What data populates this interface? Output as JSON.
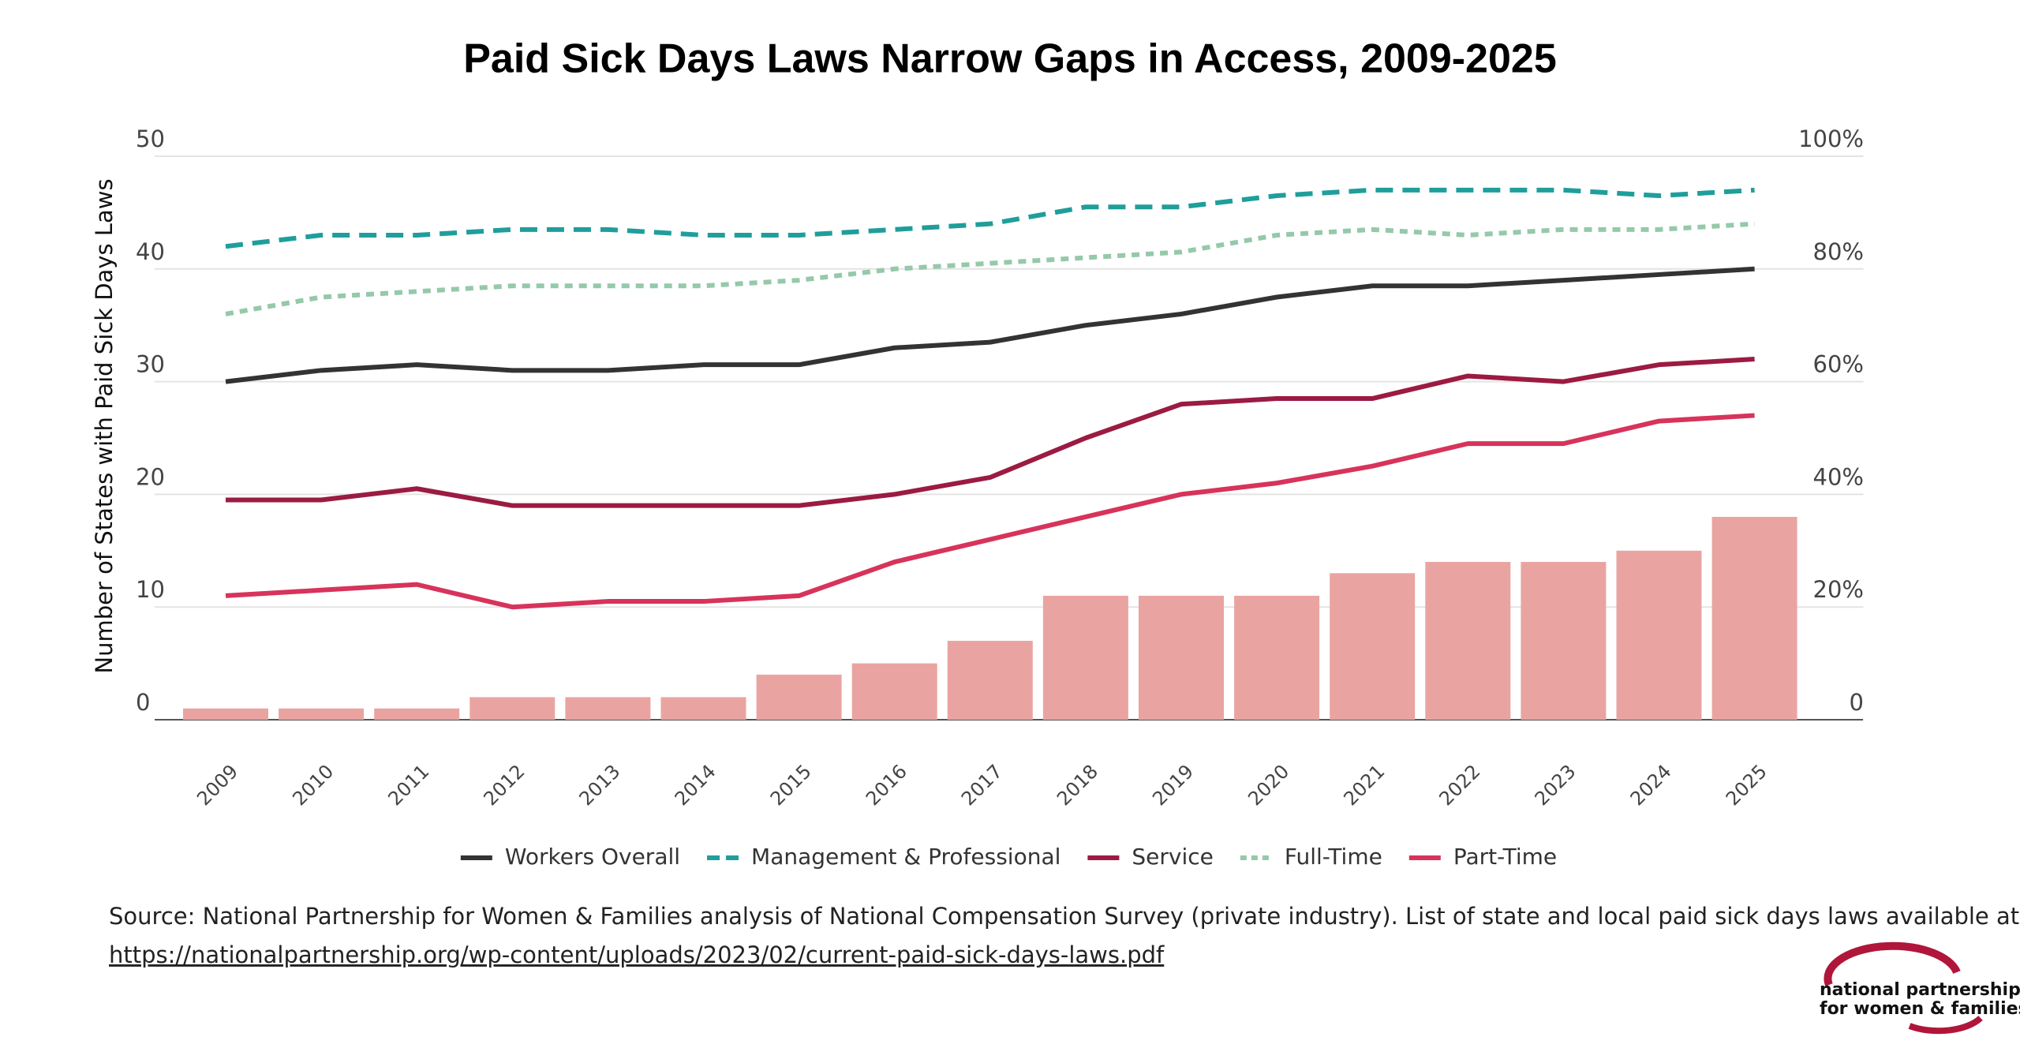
{
  "chart_data": {
    "type": "combo",
    "title": "Paid Sick Days Laws Narrow Gaps in Access, 2009-2025",
    "y_label": "Number of States with Paid Sick Days Laws",
    "categories": [
      "2009",
      "2010",
      "2011",
      "2012",
      "2013",
      "2014",
      "2015",
      "2016",
      "2017",
      "2018",
      "2019",
      "2020",
      "2021",
      "2022",
      "2023",
      "2024",
      "2025"
    ],
    "ylim": [
      0,
      50
    ],
    "yticks": [
      0,
      10,
      20,
      30,
      40,
      50
    ],
    "y2lim": [
      0,
      100
    ],
    "y2ticks": [
      {
        "value": 0,
        "label": "0"
      },
      {
        "value": 20,
        "label": "20%"
      },
      {
        "value": 40,
        "label": "40%"
      },
      {
        "value": 60,
        "label": "60%"
      },
      {
        "value": 80,
        "label": "80%"
      },
      {
        "value": 100,
        "label": "100%"
      }
    ],
    "grid": true,
    "series": [
      {
        "type": "bar",
        "color": "#e9a4a1",
        "values": [
          1,
          1,
          1,
          2,
          2,
          2,
          4,
          5,
          7,
          11,
          11,
          11,
          13,
          14,
          14,
          15,
          18
        ]
      },
      {
        "type": "line",
        "name": "Workers Overall",
        "color": "#333333",
        "dash": "solid",
        "axis": "y2",
        "values": [
          60,
          62,
          63,
          62,
          62,
          63,
          63,
          66,
          67,
          70,
          72,
          75,
          77,
          77,
          78,
          79,
          80
        ]
      },
      {
        "type": "line",
        "name": "Management & Professional",
        "color": "#1f9e9b",
        "dash": "dashed",
        "axis": "y2",
        "values": [
          84,
          86,
          86,
          87,
          87,
          86,
          86,
          87,
          88,
          91,
          91,
          93,
          94,
          94,
          94,
          93,
          94
        ]
      },
      {
        "type": "line",
        "name": "Service",
        "color": "#9b1b42",
        "dash": "solid",
        "axis": "y2",
        "values": [
          39,
          39,
          41,
          38,
          38,
          38,
          38,
          40,
          43,
          50,
          56,
          57,
          57,
          61,
          60,
          63,
          64
        ]
      },
      {
        "type": "line",
        "name": "Full-Time",
        "color": "#95c9a9",
        "dash": "dotted",
        "axis": "y2",
        "values": [
          72,
          75,
          76,
          77,
          77,
          77,
          78,
          80,
          81,
          82,
          83,
          86,
          87,
          86,
          87,
          87,
          88
        ]
      },
      {
        "type": "line",
        "name": "Part-Time",
        "color": "#d7335b",
        "dash": "solid",
        "axis": "y2",
        "values": [
          22,
          23,
          24,
          20,
          21,
          21,
          22,
          28,
          32,
          36,
          40,
          42,
          45,
          49,
          49,
          53,
          54
        ]
      }
    ]
  },
  "footer": {
    "source": "Source: National Partnership for Women & Families analysis of National Compensation Survey (private industry). List of state and local paid sick days laws available at",
    "url": "https://nationalpartnership.org/wp-content/uploads/2023/02/current-paid-sick-days-laws.pdf",
    "logo": [
      "national partnership",
      "for women & families"
    ]
  }
}
